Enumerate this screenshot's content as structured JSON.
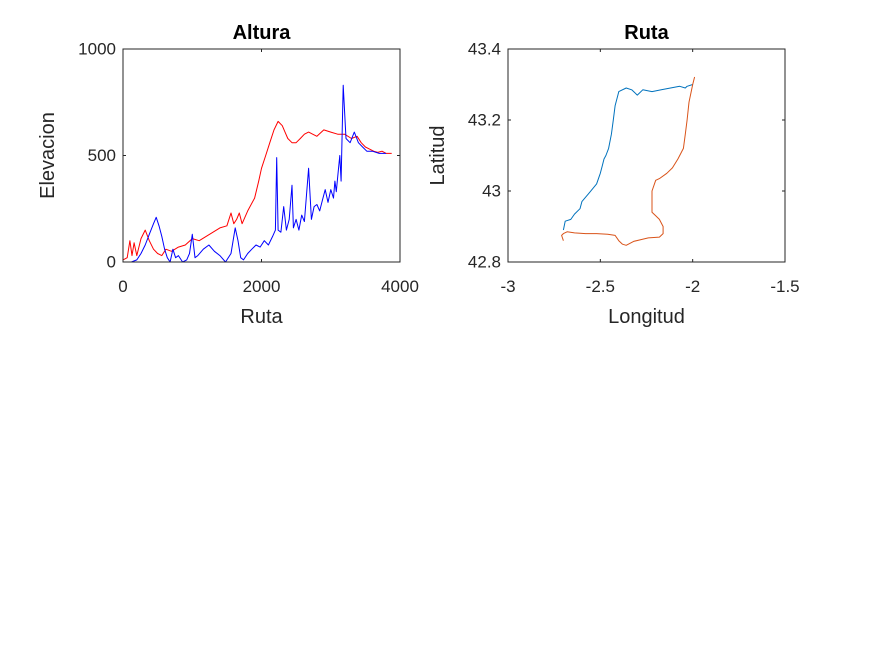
{
  "chart_data": [
    {
      "type": "line",
      "title": "Altura",
      "xlabel": "Ruta",
      "ylabel": "Elevacion",
      "xlim": [
        0,
        4000
      ],
      "ylim": [
        0,
        1000
      ],
      "xticks": [
        0,
        2000,
        4000
      ],
      "xtick_labels": [
        "0",
        "2000",
        "4000"
      ],
      "yticks": [
        0,
        500,
        1000
      ],
      "ytick_labels": [
        "0",
        "500",
        "1000"
      ],
      "grid": false,
      "series": [
        {
          "color": "#ff0000",
          "x": [
            0,
            60,
            100,
            130,
            160,
            200,
            260,
            320,
            380,
            440,
            500,
            560,
            620,
            700,
            800,
            900,
            1000,
            1100,
            1200,
            1300,
            1400,
            1500,
            1560,
            1600,
            1640,
            1680,
            1720,
            1760,
            1800,
            1900,
            1960,
            2000,
            2060,
            2120,
            2180,
            2240,
            2300,
            2340,
            2380,
            2440,
            2500,
            2560,
            2620,
            2680,
            2740,
            2800,
            2900,
            3000,
            3100,
            3200,
            3300,
            3380,
            3440,
            3500,
            3560,
            3620,
            3680,
            3740,
            3800,
            3880
          ],
          "y": [
            10,
            20,
            100,
            30,
            90,
            30,
            110,
            150,
            100,
            60,
            40,
            30,
            60,
            50,
            70,
            80,
            110,
            100,
            120,
            140,
            160,
            170,
            230,
            180,
            200,
            230,
            180,
            210,
            240,
            300,
            380,
            440,
            500,
            560,
            620,
            660,
            640,
            610,
            580,
            560,
            560,
            580,
            600,
            610,
            600,
            590,
            620,
            610,
            600,
            600,
            580,
            590,
            560,
            540,
            530,
            520,
            515,
            520,
            510,
            510
          ]
        },
        {
          "color": "#0000ff",
          "x": [
            0,
            120,
            200,
            260,
            320,
            380,
            440,
            480,
            520,
            560,
            600,
            640,
            680,
            720,
            760,
            800,
            860,
            920,
            960,
            1000,
            1040,
            1080,
            1160,
            1240,
            1320,
            1400,
            1480,
            1560,
            1620,
            1660,
            1700,
            1740,
            1800,
            1860,
            1920,
            1980,
            2040,
            2100,
            2160,
            2200,
            2220,
            2240,
            2280,
            2320,
            2360,
            2400,
            2440,
            2460,
            2500,
            2540,
            2580,
            2620,
            2680,
            2720,
            2760,
            2800,
            2840,
            2880,
            2920,
            2960,
            3000,
            3040,
            3060,
            3080,
            3100,
            3130,
            3150,
            3180,
            3220,
            3280,
            3340,
            3400,
            3460,
            3520,
            3600,
            3700,
            3800
          ],
          "y": [
            0,
            0,
            10,
            40,
            80,
            130,
            180,
            210,
            170,
            120,
            60,
            20,
            0,
            60,
            20,
            30,
            0,
            10,
            40,
            130,
            20,
            30,
            60,
            80,
            50,
            30,
            0,
            40,
            160,
            100,
            20,
            10,
            40,
            60,
            80,
            70,
            100,
            80,
            120,
            150,
            490,
            150,
            140,
            260,
            150,
            200,
            360,
            160,
            200,
            150,
            220,
            190,
            440,
            200,
            260,
            270,
            240,
            290,
            340,
            280,
            340,
            300,
            380,
            330,
            400,
            500,
            380,
            830,
            580,
            560,
            610,
            560,
            540,
            520,
            520,
            510,
            510
          ]
        }
      ]
    },
    {
      "type": "line",
      "title": "Ruta",
      "xlabel": "Longitud",
      "ylabel": "Latitud",
      "xlim": [
        -3,
        -1.5
      ],
      "ylim": [
        42.8,
        43.4
      ],
      "xticks": [
        -3,
        -2.5,
        -2,
        -1.5
      ],
      "xtick_labels": [
        "-3",
        "-2.5",
        "-2",
        "-1.5"
      ],
      "yticks": [
        42.8,
        43,
        43.2,
        43.4
      ],
      "ytick_labels": [
        "42.8",
        "43",
        "43.2",
        "43.4"
      ],
      "grid": false,
      "series": [
        {
          "color": "#0072bd",
          "x": [
            -2.7,
            -2.69,
            -2.66,
            -2.64,
            -2.61,
            -2.6,
            -2.56,
            -2.52,
            -2.5,
            -2.49,
            -2.48,
            -2.47,
            -2.455,
            -2.44,
            -2.43,
            -2.42,
            -2.4,
            -2.36,
            -2.33,
            -2.3,
            -2.27,
            -2.22,
            -2.17,
            -2.12,
            -2.07,
            -2.04,
            -2.03,
            -2.0
          ],
          "y": [
            42.89,
            42.915,
            42.92,
            42.935,
            42.95,
            42.97,
            42.995,
            43.02,
            43.05,
            43.07,
            43.09,
            43.1,
            43.12,
            43.16,
            43.2,
            43.24,
            43.28,
            43.29,
            43.285,
            43.27,
            43.285,
            43.28,
            43.285,
            43.29,
            43.295,
            43.29,
            43.295,
            43.3
          ]
        },
        {
          "color": "#d95319",
          "x": [
            -2.0,
            -1.995,
            -1.99,
            -2.0,
            -2.02,
            -2.03,
            -2.04,
            -2.05,
            -2.08,
            -2.11,
            -2.14,
            -2.18,
            -2.2,
            -2.22,
            -2.22,
            -2.22,
            -2.2,
            -2.18,
            -2.16,
            -2.16,
            -2.18,
            -2.24,
            -2.28,
            -2.32,
            -2.36,
            -2.38,
            -2.4,
            -2.42,
            -2.46,
            -2.52,
            -2.58,
            -2.64,
            -2.68,
            -2.7,
            -2.71,
            -2.7
          ],
          "y": [
            43.3,
            43.31,
            43.32,
            43.3,
            43.25,
            43.2,
            43.16,
            43.12,
            43.09,
            43.065,
            43.05,
            43.035,
            43.03,
            43.0,
            42.97,
            42.94,
            42.93,
            42.92,
            42.9,
            42.88,
            42.87,
            42.868,
            42.863,
            42.858,
            42.847,
            42.85,
            42.86,
            42.875,
            42.878,
            42.88,
            42.88,
            42.882,
            42.885,
            42.88,
            42.875,
            42.86
          ]
        }
      ]
    }
  ]
}
